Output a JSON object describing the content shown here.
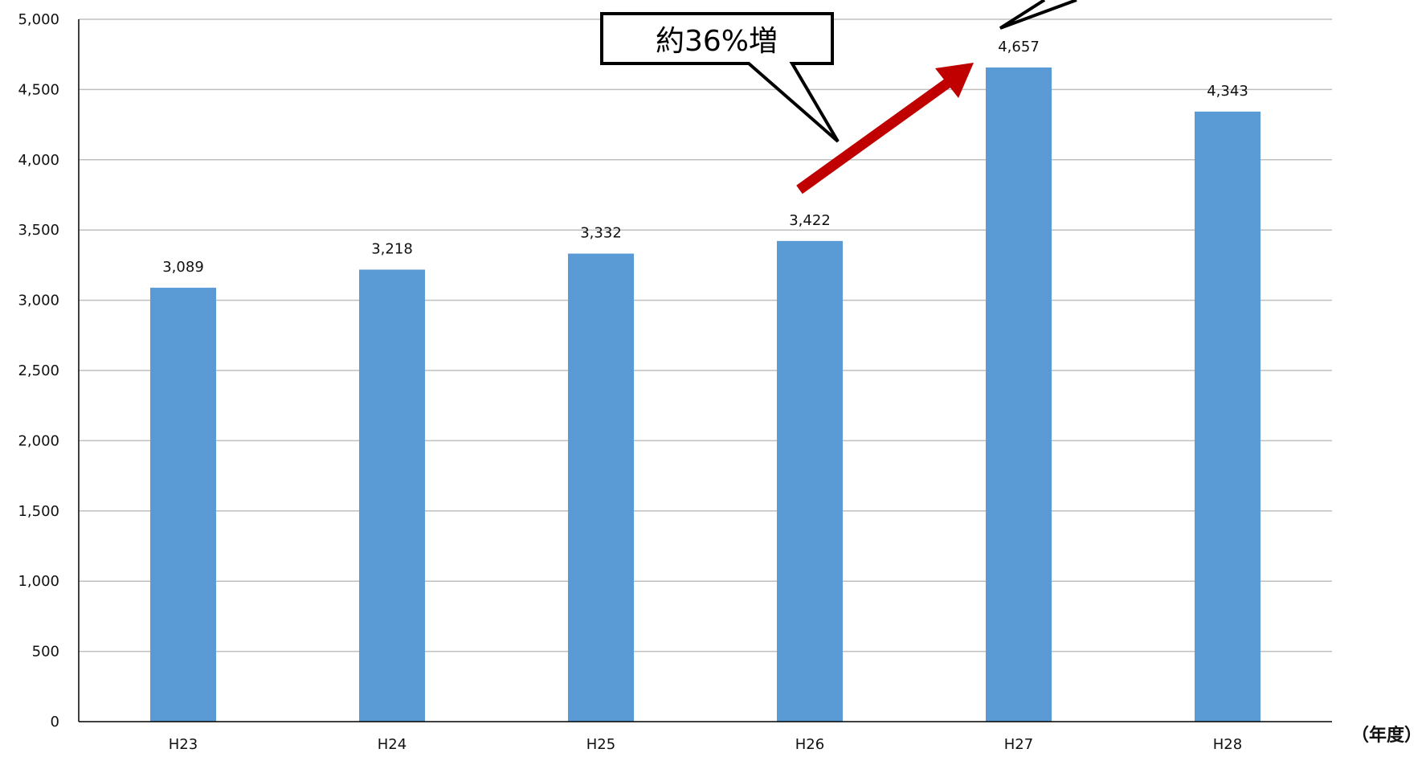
{
  "chart_data": {
    "type": "bar",
    "title": "",
    "xlabel": "",
    "ylabel": "",
    "x_unit": "（年度）",
    "categories": [
      "H23",
      "H24",
      "H25",
      "H26",
      "H27",
      "H28"
    ],
    "values": [
      3089,
      3218,
      3332,
      3422,
      4657,
      4343
    ],
    "value_labels": [
      "3,089",
      "3,218",
      "3,332",
      "3,422",
      "4,657",
      "4,343"
    ],
    "ylim": [
      0,
      5000
    ],
    "yticks": [
      0,
      500,
      1000,
      1500,
      2000,
      2500,
      3000,
      3500,
      4000,
      4500,
      5000
    ],
    "ytick_labels": [
      "0",
      "500",
      "1,000",
      "1,500",
      "2,000",
      "2,500",
      "3,000",
      "3,500",
      "4,000",
      "4,500",
      "5,000"
    ],
    "grid": true,
    "legend": "none",
    "colors": {
      "bar": "#5B9BD5",
      "grid": "#BFBFBF",
      "axis": "#000000",
      "arrow": "#C00000"
    },
    "annotations": [
      {
        "text": "約36%増",
        "type": "callout-with-arrow",
        "from_category": "H26",
        "to_category": "H27"
      }
    ]
  }
}
